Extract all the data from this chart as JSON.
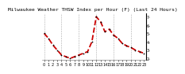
{
  "title": "Milwaukee Weather THSW Index per Hour (F) (Last 24 Hours)",
  "x_hours": [
    0,
    1,
    2,
    3,
    4,
    5,
    6,
    7,
    8,
    9,
    10,
    11,
    12,
    13,
    14,
    15,
    16,
    17,
    18,
    19,
    20,
    21,
    22,
    23
  ],
  "y_values": [
    50,
    44,
    36,
    30,
    24,
    22,
    20,
    22,
    24,
    26,
    28,
    40,
    70,
    64,
    52,
    55,
    48,
    44,
    38,
    35,
    33,
    30,
    28,
    26
  ],
  "line_color": "#cc0000",
  "marker_color": "#000000",
  "background_color": "#ffffff",
  "plot_bg_color": "#ffffff",
  "grid_color": "#888888",
  "title_color": "#000000",
  "ylim": [
    18,
    74
  ],
  "ytick_values": [
    70,
    60,
    50,
    40,
    30,
    20
  ],
  "ytick_labels": [
    "7-",
    "6-",
    "5-",
    "4-",
    "3-",
    "2-"
  ],
  "title_fontsize": 4.5,
  "tick_fontsize": 3.5,
  "line_width": 1.3,
  "marker_size": 1.8,
  "grid_every": 4
}
